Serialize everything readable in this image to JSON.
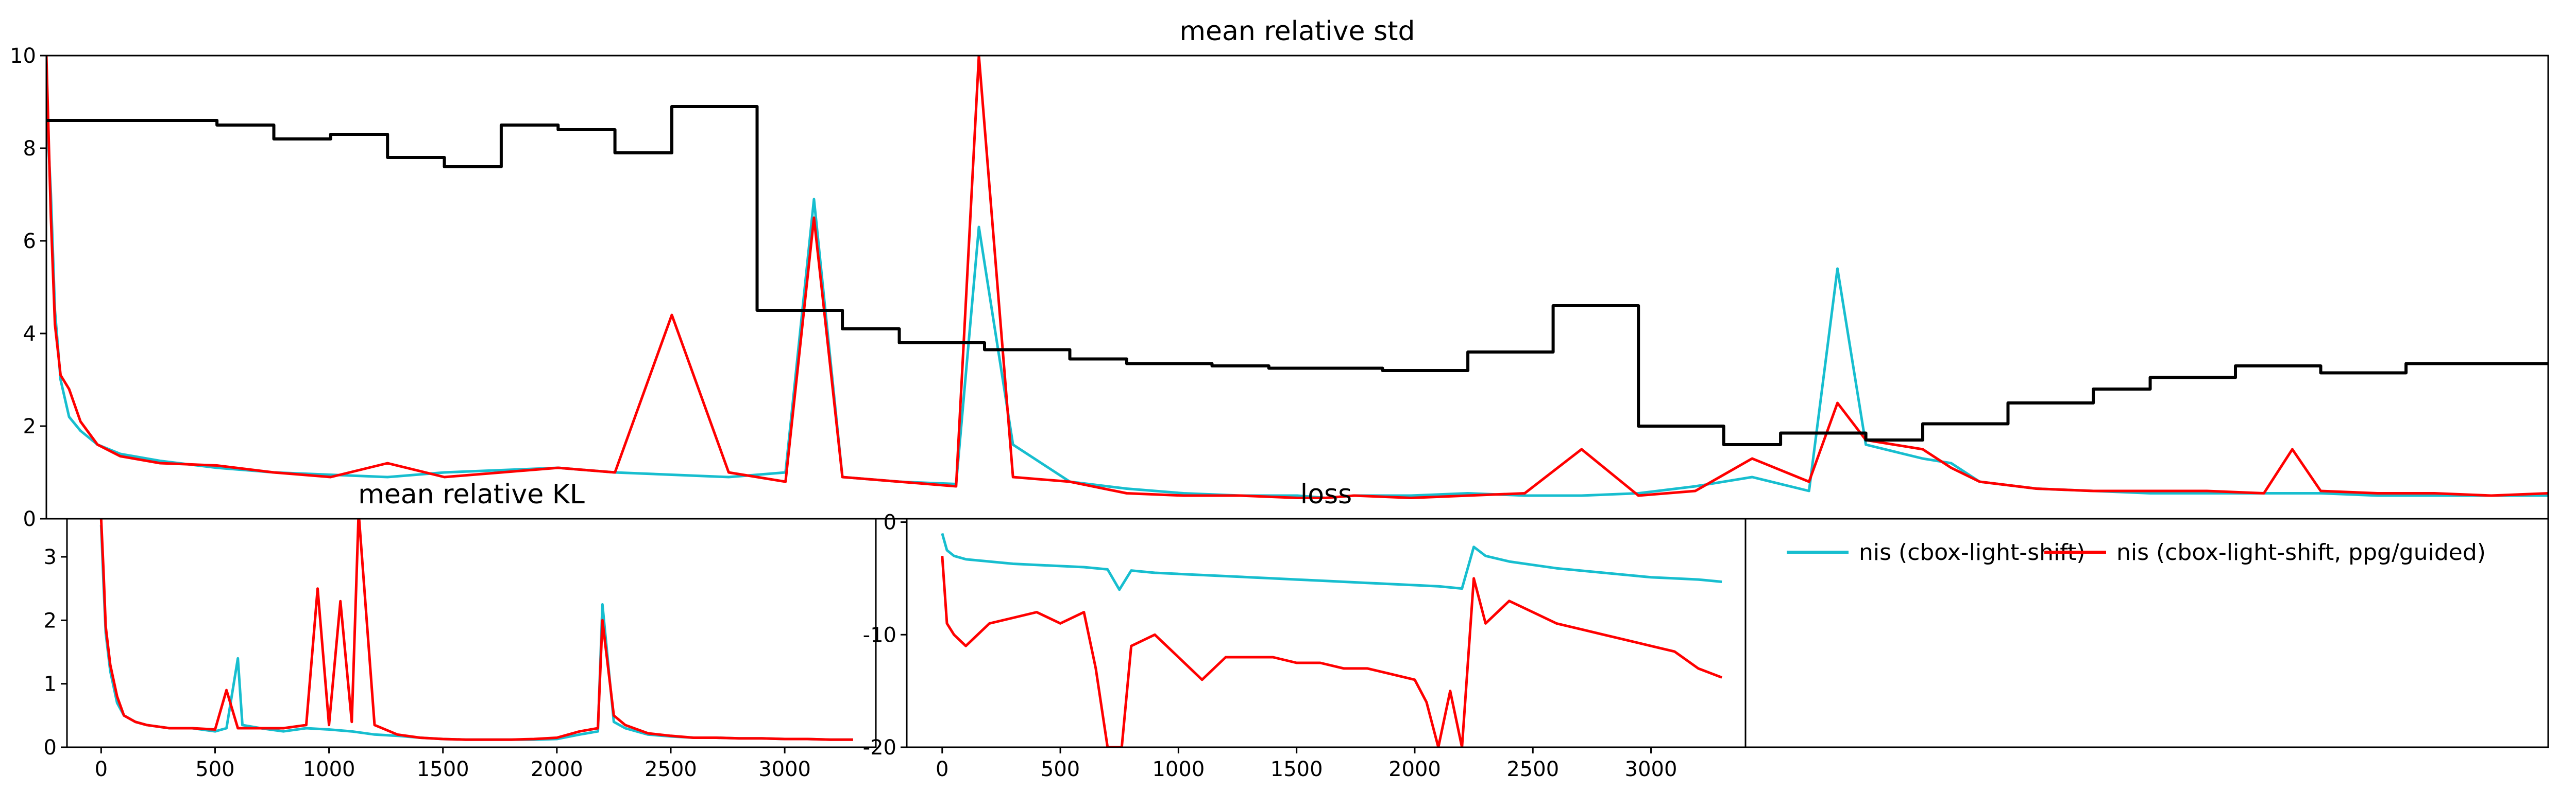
{
  "colors": {
    "nis": "#17becf",
    "ppg": "#ff0000",
    "variance": "#000000"
  },
  "legend": {
    "entries": [
      {
        "label": "nis (cbox-light-shift)",
        "color": "#17becf"
      },
      {
        "label": "nis (cbox-light-shift, ppg/guided)",
        "color": "#ff0000"
      }
    ]
  },
  "chart_data": [
    {
      "id": "std",
      "type": "line",
      "title": "mean relative std",
      "xlim": [
        0,
        4400
      ],
      "ylim": [
        0,
        10
      ],
      "yticks": [
        0,
        2,
        4,
        6,
        8,
        10
      ],
      "xticks": [],
      "series": [
        {
          "name": "nis (cbox-light-shift)",
          "color": "#17becf",
          "x": [
            0,
            8,
            15,
            25,
            40,
            60,
            90,
            130,
            200,
            300,
            400,
            500,
            600,
            700,
            800,
            900,
            1000,
            1100,
            1200,
            1300,
            1350,
            1400,
            1500,
            1600,
            1640,
            1700,
            1800,
            1900,
            2000,
            2100,
            2200,
            2250,
            2300,
            2400,
            2500,
            2600,
            2700,
            2800,
            2900,
            3000,
            3100,
            3150,
            3200,
            3300,
            3350,
            3400,
            3500,
            3600,
            3700,
            3800,
            3900,
            4000,
            4100,
            4200,
            4300,
            4400
          ],
          "y": [
            9.0,
            7.0,
            4.5,
            3.0,
            2.2,
            1.9,
            1.6,
            1.4,
            1.25,
            1.1,
            1.0,
            0.95,
            0.9,
            1.0,
            1.05,
            1.1,
            1.0,
            0.95,
            0.9,
            1.0,
            6.9,
            0.9,
            0.8,
            0.75,
            6.3,
            1.6,
            0.8,
            0.65,
            0.55,
            0.5,
            0.5,
            0.45,
            0.5,
            0.5,
            0.55,
            0.5,
            0.5,
            0.55,
            0.7,
            0.9,
            0.6,
            5.4,
            1.6,
            1.3,
            1.2,
            0.8,
            0.65,
            0.6,
            0.55,
            0.55,
            0.55,
            0.55,
            0.5,
            0.5,
            0.5,
            0.5
          ]
        },
        {
          "name": "nis (cbox-light-shift, ppg/guided)",
          "color": "#ff0000",
          "x": [
            0,
            8,
            15,
            25,
            40,
            60,
            90,
            130,
            200,
            300,
            400,
            500,
            600,
            700,
            800,
            900,
            1000,
            1100,
            1200,
            1300,
            1350,
            1400,
            1500,
            1600,
            1640,
            1700,
            1800,
            1900,
            2000,
            2100,
            2200,
            2250,
            2300,
            2400,
            2500,
            2600,
            2700,
            2800,
            2900,
            3000,
            3100,
            3150,
            3200,
            3300,
            3350,
            3400,
            3500,
            3600,
            3700,
            3800,
            3900,
            3950,
            4000,
            4100,
            4200,
            4300,
            4400
          ],
          "y": [
            10.0,
            6.5,
            4.2,
            3.1,
            2.8,
            2.1,
            1.6,
            1.35,
            1.2,
            1.15,
            1.0,
            0.9,
            1.2,
            0.9,
            1.0,
            1.1,
            1.0,
            4.4,
            1.0,
            0.8,
            6.5,
            0.9,
            0.8,
            0.7,
            10.0,
            0.9,
            0.8,
            0.55,
            0.5,
            0.5,
            0.45,
            0.45,
            0.5,
            0.45,
            0.5,
            0.55,
            1.5,
            0.5,
            0.6,
            1.3,
            0.8,
            2.5,
            1.7,
            1.5,
            1.1,
            0.8,
            0.65,
            0.6,
            0.6,
            0.6,
            0.55,
            1.5,
            0.6,
            0.55,
            0.55,
            0.5,
            0.55
          ]
        },
        {
          "name": "",
          "color": "#000000",
          "step": true,
          "x": [
            0,
            1250,
            1250,
            4400
          ],
          "y": [
            8.6,
            8.6,
            4.5,
            3.35
          ],
          "segments": [
            {
              "x0": 0,
              "x1": 100,
              "y": 8.6
            },
            {
              "x0": 100,
              "x1": 200,
              "y": 8.6
            },
            {
              "x0": 200,
              "x1": 300,
              "y": 8.6
            },
            {
              "x0": 300,
              "x1": 400,
              "y": 8.5
            },
            {
              "x0": 400,
              "x1": 500,
              "y": 8.2
            },
            {
              "x0": 500,
              "x1": 600,
              "y": 8.3
            },
            {
              "x0": 600,
              "x1": 700,
              "y": 7.8
            },
            {
              "x0": 700,
              "x1": 800,
              "y": 7.6
            },
            {
              "x0": 800,
              "x1": 900,
              "y": 8.5
            },
            {
              "x0": 900,
              "x1": 1000,
              "y": 8.4
            },
            {
              "x0": 1000,
              "x1": 1100,
              "y": 7.9
            },
            {
              "x0": 1100,
              "x1": 1250,
              "y": 8.9
            },
            {
              "x0": 1250,
              "x1": 1400,
              "y": 4.5
            },
            {
              "x0": 1400,
              "x1": 1500,
              "y": 4.1
            },
            {
              "x0": 1500,
              "x1": 1650,
              "y": 3.8
            },
            {
              "x0": 1650,
              "x1": 1800,
              "y": 3.65
            },
            {
              "x0": 1800,
              "x1": 1900,
              "y": 3.45
            },
            {
              "x0": 1900,
              "x1": 2050,
              "y": 3.35
            },
            {
              "x0": 2050,
              "x1": 2150,
              "y": 3.3
            },
            {
              "x0": 2150,
              "x1": 2350,
              "y": 3.25
            },
            {
              "x0": 2350,
              "x1": 2500,
              "y": 3.2
            },
            {
              "x0": 2500,
              "x1": 2650,
              "y": 3.6
            },
            {
              "x0": 2650,
              "x1": 2800,
              "y": 4.6
            },
            {
              "x0": 2800,
              "x1": 2950,
              "y": 2.0
            },
            {
              "x0": 2950,
              "x1": 3050,
              "y": 1.6
            },
            {
              "x0": 3050,
              "x1": 3200,
              "y": 1.85
            },
            {
              "x0": 3200,
              "x1": 3300,
              "y": 1.7
            },
            {
              "x0": 3300,
              "x1": 3450,
              "y": 2.05
            },
            {
              "x0": 3450,
              "x1": 3600,
              "y": 2.5
            },
            {
              "x0": 3600,
              "x1": 3700,
              "y": 2.8
            },
            {
              "x0": 3700,
              "x1": 3850,
              "y": 3.05
            },
            {
              "x0": 3850,
              "x1": 4000,
              "y": 3.3
            },
            {
              "x0": 4000,
              "x1": 4150,
              "y": 3.15
            },
            {
              "x0": 4150,
              "x1": 4400,
              "y": 3.35
            }
          ]
        }
      ]
    },
    {
      "id": "kl",
      "type": "line",
      "title": "mean relative KL",
      "xlim": [
        -150,
        3400
      ],
      "ylim": [
        0,
        3.6
      ],
      "xticks": [
        0,
        500,
        1000,
        1500,
        2000,
        2500,
        3000
      ],
      "yticks": [
        0,
        1,
        2,
        3
      ],
      "series": [
        {
          "name": "nis (cbox-light-shift)",
          "color": "#17becf",
          "x": [
            0,
            10,
            20,
            40,
            70,
            100,
            150,
            200,
            300,
            400,
            500,
            550,
            600,
            620,
            700,
            800,
            900,
            1000,
            1100,
            1200,
            1300,
            1400,
            1500,
            1600,
            1700,
            1800,
            1900,
            2000,
            2100,
            2180,
            2200,
            2250,
            2300,
            2400,
            2500,
            2600,
            2700,
            2800,
            2900,
            3000,
            3100,
            3200,
            3300
          ],
          "y": [
            3.5,
            2.6,
            1.8,
            1.2,
            0.7,
            0.5,
            0.4,
            0.35,
            0.3,
            0.3,
            0.25,
            0.3,
            1.4,
            0.35,
            0.3,
            0.25,
            0.3,
            0.28,
            0.25,
            0.2,
            0.18,
            0.15,
            0.13,
            0.12,
            0.12,
            0.12,
            0.12,
            0.13,
            0.2,
            0.25,
            2.25,
            0.4,
            0.3,
            0.2,
            0.17,
            0.15,
            0.15,
            0.14,
            0.14,
            0.13,
            0.13,
            0.12,
            0.12
          ]
        },
        {
          "name": "nis (cbox-light-shift, ppg/guided)",
          "color": "#ff0000",
          "x": [
            0,
            10,
            20,
            40,
            70,
            100,
            150,
            200,
            300,
            400,
            500,
            550,
            600,
            700,
            800,
            900,
            950,
            1000,
            1050,
            1100,
            1130,
            1200,
            1300,
            1400,
            1500,
            1600,
            1700,
            1800,
            1900,
            2000,
            2100,
            2180,
            2200,
            2250,
            2300,
            2400,
            2500,
            2600,
            2700,
            2800,
            2900,
            3000,
            3100,
            3200,
            3300
          ],
          "y": [
            3.6,
            2.8,
            1.9,
            1.3,
            0.8,
            0.5,
            0.4,
            0.35,
            0.3,
            0.3,
            0.28,
            0.9,
            0.3,
            0.3,
            0.3,
            0.35,
            2.5,
            0.35,
            2.3,
            0.4,
            3.7,
            0.35,
            0.2,
            0.15,
            0.13,
            0.12,
            0.12,
            0.12,
            0.13,
            0.15,
            0.25,
            0.3,
            2.0,
            0.5,
            0.35,
            0.22,
            0.18,
            0.15,
            0.15,
            0.14,
            0.14,
            0.13,
            0.13,
            0.12,
            0.12
          ]
        }
      ]
    },
    {
      "id": "loss",
      "type": "line",
      "title": "loss",
      "xlim": [
        -150,
        3400
      ],
      "ylim": [
        -20,
        0.3
      ],
      "xticks": [
        0,
        500,
        1000,
        1500,
        2000,
        2500,
        3000
      ],
      "yticks": [
        0,
        -10,
        -20
      ],
      "series": [
        {
          "name": "nis (cbox-light-shift)",
          "color": "#17becf",
          "x": [
            0,
            20,
            50,
            100,
            200,
            300,
            400,
            500,
            600,
            700,
            750,
            800,
            900,
            1000,
            1100,
            1200,
            1300,
            1400,
            1500,
            1600,
            1700,
            1800,
            1900,
            2000,
            2100,
            2200,
            2250,
            2300,
            2400,
            2500,
            2600,
            2700,
            2800,
            2900,
            3000,
            3100,
            3200,
            3300
          ],
          "y": [
            -1.0,
            -2.5,
            -3.0,
            -3.3,
            -3.5,
            -3.7,
            -3.8,
            -3.9,
            -4.0,
            -4.2,
            -6.0,
            -4.3,
            -4.5,
            -4.6,
            -4.7,
            -4.8,
            -4.9,
            -5.0,
            -5.1,
            -5.2,
            -5.3,
            -5.4,
            -5.5,
            -5.6,
            -5.7,
            -5.9,
            -2.2,
            -3.0,
            -3.5,
            -3.8,
            -4.1,
            -4.3,
            -4.5,
            -4.7,
            -4.9,
            -5.0,
            -5.1,
            -5.3
          ]
        },
        {
          "name": "nis (cbox-light-shift, ppg/guided)",
          "color": "#ff0000",
          "x": [
            0,
            20,
            50,
            100,
            200,
            300,
            400,
            500,
            600,
            650,
            700,
            760,
            800,
            900,
            1000,
            1050,
            1100,
            1200,
            1300,
            1400,
            1500,
            1600,
            1700,
            1800,
            1900,
            2000,
            2050,
            2100,
            2150,
            2200,
            2250,
            2300,
            2400,
            2500,
            2600,
            2700,
            2800,
            2900,
            3000,
            3100,
            3200,
            3300
          ],
          "y": [
            -3.0,
            -9.0,
            -10.0,
            -11.0,
            -9.0,
            -8.5,
            -8.0,
            -9.0,
            -8.0,
            -13.0,
            -20.0,
            -20.0,
            -11.0,
            -10.0,
            -12.0,
            -13.0,
            -14.0,
            -12.0,
            -12.0,
            -12.0,
            -12.5,
            -12.5,
            -13.0,
            -13.0,
            -13.5,
            -14.0,
            -16.0,
            -20.0,
            -15.0,
            -20.0,
            -5.0,
            -9.0,
            -7.0,
            -8.0,
            -9.0,
            -9.5,
            -10.0,
            -10.5,
            -11.0,
            -11.5,
            -13.0,
            -13.8
          ]
        }
      ]
    }
  ]
}
